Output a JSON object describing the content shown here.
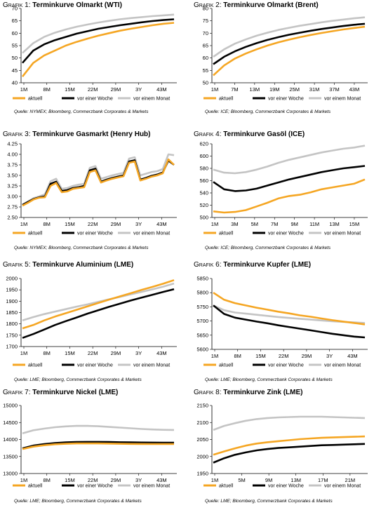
{
  "colors": {
    "aktuell": "#f5a623",
    "week": "#000000",
    "month": "#c4c4c4",
    "grid": "#dddddd"
  },
  "panels": [
    {
      "prefix": "Grafik 1:",
      "title": "Terminkurve Olmarkt (WTI)",
      "source": "Quelle: NYMEX; Bloomberg, Commerzbank Corporates & Markets",
      "chart_data": {
        "type": "line",
        "x_ticks": [
          "1M",
          "8M",
          "15M",
          "22M",
          "29M",
          "3Y",
          "43M"
        ],
        "ylim": [
          40,
          70
        ],
        "y_ticks": [
          40,
          45,
          50,
          55,
          60,
          65,
          70
        ],
        "legend": [
          "aktuell",
          "vor einer Woche",
          "vor einem Monat"
        ],
        "series": [
          {
            "name": "aktuell",
            "values": [
              42.5,
              48,
              51,
              53,
              55,
              56.5,
              57.8,
              59,
              60,
              61,
              61.8,
              62.5,
              63.2,
              63.8,
              64.2
            ]
          },
          {
            "name": "vor einer Woche",
            "values": [
              48,
              53,
              55.5,
              57.2,
              58.5,
              59.8,
              60.8,
              61.8,
              62.5,
              63.2,
              63.8,
              64.4,
              64.9,
              65.3,
              65.6
            ]
          },
          {
            "name": "vor einem Monat",
            "values": [
              52,
              56,
              58.5,
              60.2,
              61.5,
              62.6,
              63.5,
              64.3,
              65,
              65.6,
              66.1,
              66.5,
              66.9,
              67.2,
              67.5
            ]
          }
        ]
      }
    },
    {
      "prefix": "Grafik 2:",
      "title": "Terminkurve Olmarkt (Brent)",
      "source": "Quelle: ICE; Bloomberg, Commerzbank Corporates & Markets",
      "chart_data": {
        "type": "line",
        "x_ticks": [
          "1M",
          "7M",
          "13M",
          "19M",
          "25M",
          "31M",
          "37M",
          "43M"
        ],
        "ylim": [
          50,
          80
        ],
        "y_ticks": [
          50,
          55,
          60,
          65,
          70,
          75,
          80
        ],
        "legend": [
          "aktuell",
          "vor einer Woche",
          "vor einem Monat"
        ],
        "series": [
          {
            "name": "aktuell",
            "values": [
              53,
              57,
              59.8,
              61.8,
              63.5,
              65,
              66.3,
              67.4,
              68.4,
              69.3,
              70.1,
              70.8,
              71.5,
              72.1,
              72.6
            ]
          },
          {
            "name": "vor einer Woche",
            "values": [
              57.5,
              60.5,
              62.7,
              64.5,
              66,
              67.3,
              68.4,
              69.4,
              70.2,
              71,
              71.7,
              72.3,
              72.9,
              73.4,
              73.8
            ]
          },
          {
            "name": "vor einem Monat",
            "values": [
              60.5,
              63.5,
              65.8,
              67.5,
              69,
              70.2,
              71.3,
              72.2,
              73,
              73.7,
              74.4,
              75,
              75.5,
              76,
              76.4
            ]
          }
        ]
      }
    },
    {
      "prefix": "Grafik 3:",
      "title": "Terminkurve Gasmarkt (Henry Hub)",
      "source": "Quelle: NYMEX; Bloomberg, Commerzbank Corporates & Markets",
      "chart_data": {
        "type": "line",
        "x_ticks": [
          "1M",
          "8M",
          "15M",
          "22M",
          "29M",
          "3Y",
          "43M"
        ],
        "ylim": [
          2.5,
          4.25
        ],
        "y_ticks": [
          2.5,
          2.75,
          3.0,
          3.25,
          3.5,
          3.75,
          4.0,
          4.25
        ],
        "y_tick_labels": [
          "2.50",
          "2.75",
          "3.00",
          "3.25",
          "3.50",
          "3.75",
          "4.00",
          "4.25"
        ],
        "legend": [
          "aktuell",
          "vor einer Woche",
          "vor einem Monat"
        ],
        "series": [
          {
            "name": "aktuell",
            "values": [
              2.78,
              2.85,
              2.93,
              2.97,
              2.98,
              3.25,
              3.32,
              3.1,
              3.12,
              3.18,
              3.2,
              3.22,
              3.58,
              3.62,
              3.33,
              3.38,
              3.42,
              3.45,
              3.48,
              3.8,
              3.83,
              3.38,
              3.42,
              3.47,
              3.5,
              3.55,
              3.88,
              3.75
            ]
          },
          {
            "name": "vor einer Woche",
            "values": [
              2.8,
              2.87,
              2.94,
              2.98,
              3.0,
              3.3,
              3.35,
              3.13,
              3.15,
              3.2,
              3.22,
              3.25,
              3.62,
              3.66,
              3.35,
              3.4,
              3.44,
              3.47,
              3.5,
              3.83,
              3.86,
              3.4,
              3.44,
              3.49,
              3.52,
              3.57,
              3.85,
              3.75
            ]
          },
          {
            "name": "vor einem Monat",
            "values": [
              2.8,
              2.88,
              2.96,
              3.0,
              3.05,
              3.36,
              3.42,
              3.18,
              3.2,
              3.25,
              3.28,
              3.3,
              3.68,
              3.72,
              3.42,
              3.46,
              3.5,
              3.53,
              3.56,
              3.9,
              3.93,
              3.5,
              3.54,
              3.58,
              3.6,
              3.65,
              4.0,
              3.98
            ]
          }
        ]
      }
    },
    {
      "prefix": "Grafik 4:",
      "title": "Terminkurve Gasöl (ICE)",
      "source": "Quelle: ICE; Bloomberg, Commerzbank Corporates & Markets",
      "chart_data": {
        "type": "line",
        "x_ticks": [
          "1M",
          "3M",
          "5M",
          "7M",
          "9M",
          "11M",
          "13M",
          "15M"
        ],
        "ylim": [
          500,
          620
        ],
        "y_ticks": [
          500,
          520,
          540,
          560,
          580,
          600,
          620
        ],
        "legend": [
          "aktuell",
          "vor einer Woche",
          "vor einem Monat"
        ],
        "series": [
          {
            "name": "aktuell",
            "values": [
              510,
              508,
              509,
              512,
              518,
              524,
              531,
              535,
              537,
              541,
              546,
              549,
              552,
              555,
              562
            ]
          },
          {
            "name": "vor einer Woche",
            "values": [
              558,
              546,
              543,
              544,
              547,
              552,
              557,
              562,
              566,
              570,
              574,
              577,
              580,
              582,
              584
            ]
          },
          {
            "name": "vor einem Monat",
            "values": [
              578,
              573,
              572,
              574,
              578,
              583,
              589,
              594,
              598,
              602,
              606,
              609,
              612,
              614,
              617
            ]
          }
        ]
      }
    },
    {
      "prefix": "Grafik 5:",
      "title": "Terminkurve Aluminium (LME)",
      "source": "Quelle: LME; Bloomberg, Commerzbank Corporates & Markets",
      "chart_data": {
        "type": "line",
        "x_ticks": [
          "1M",
          "8M",
          "15M",
          "22M",
          "29M",
          "3Y",
          "43M"
        ],
        "ylim": [
          1700,
          2000
        ],
        "y_ticks": [
          1700,
          1750,
          1800,
          1850,
          1900,
          1950,
          2000
        ],
        "legend": [
          "aktuell",
          "vor einer Woche",
          "vor einem Monat"
        ],
        "series": [
          {
            "name": "aktuell",
            "values": [
              1780,
              1795,
              1815,
              1832,
              1847,
              1862,
              1877,
              1892,
              1907,
              1921,
              1935,
              1950,
              1963,
              1977,
              1993
            ]
          },
          {
            "name": "vor einer Woche",
            "values": [
              1738,
              1755,
              1775,
              1795,
              1812,
              1828,
              1845,
              1860,
              1875,
              1889,
              1903,
              1916,
              1928,
              1941,
              1953
            ]
          },
          {
            "name": "vor einem Monat",
            "values": [
              1815,
              1830,
              1843,
              1854,
              1865,
              1876,
              1886,
              1897,
              1908,
              1919,
              1930,
              1941,
              1952,
              1964,
              1978
            ]
          }
        ]
      }
    },
    {
      "prefix": "Grafik 6:",
      "title": "Terminkurve Kupfer (LME)",
      "source": "Quelle: LME; Bloomberg, Commerzbank Corporates & Markets",
      "chart_data": {
        "type": "line",
        "x_ticks": [
          "1M",
          "8M",
          "15M",
          "22M",
          "29M",
          "3Y",
          "43M"
        ],
        "ylim": [
          5600,
          5850
        ],
        "y_ticks": [
          5600,
          5650,
          5700,
          5750,
          5800,
          5850
        ],
        "legend": [
          "aktuell",
          "vor einer Woche",
          "vor einem Monat"
        ],
        "series": [
          {
            "name": "aktuell",
            "values": [
              5800,
              5775,
              5763,
              5755,
              5747,
              5740,
              5733,
              5727,
              5720,
              5715,
              5709,
              5703,
              5698,
              5693,
              5688
            ]
          },
          {
            "name": "vor einer Woche",
            "values": [
              5755,
              5725,
              5712,
              5705,
              5698,
              5692,
              5685,
              5679,
              5673,
              5667,
              5661,
              5655,
              5650,
              5645,
              5642
            ]
          },
          {
            "name": "vor einem Monat",
            "values": [
              5755,
              5738,
              5730,
              5726,
              5722,
              5718,
              5714,
              5711,
              5708,
              5705,
              5702,
              5699,
              5697,
              5695,
              5693
            ]
          }
        ]
      }
    },
    {
      "prefix": "Grafik 7:",
      "title": "Terminkurve Nickel (LME)",
      "source": "Quelle: LME; Bloomberg, Commerzbank Corporates & Markets",
      "chart_data": {
        "type": "line",
        "x_ticks": [
          "1M",
          "8M",
          "15M",
          "22M",
          "29M",
          "3Y",
          "43M"
        ],
        "ylim": [
          13000,
          15000
        ],
        "y_ticks": [
          13000,
          13500,
          14000,
          14500,
          15000
        ],
        "legend": [
          "aktuell",
          "vor einer Woche",
          "vor einem Monat"
        ],
        "series": [
          {
            "name": "aktuell",
            "values": [
              13720,
              13790,
              13830,
              13860,
              13875,
              13885,
              13885,
              13885,
              13880,
              13875,
              13870,
              13868,
              13866,
              13865,
              13865
            ]
          },
          {
            "name": "vor einer Woche",
            "values": [
              13740,
              13820,
              13865,
              13895,
              13915,
              13925,
              13930,
              13930,
              13925,
              13920,
              13915,
              13912,
              13910,
              13908,
              13908
            ]
          },
          {
            "name": "vor einem Monat",
            "values": [
              14180,
              14270,
              14320,
              14360,
              14385,
              14400,
              14400,
              14390,
              14370,
              14350,
              14330,
              14310,
              14295,
              14285,
              14280
            ]
          }
        ]
      }
    },
    {
      "prefix": "Grafik 8:",
      "title": "Terminkurve Zink (LME)",
      "source": "Quelle: LME; Bloomberg, Commerzbank Corporates & Markets",
      "chart_data": {
        "type": "line",
        "x_ticks": [
          "1M",
          "5M",
          "9M",
          "13M",
          "17M",
          "21M"
        ],
        "ylim": [
          1950,
          2150
        ],
        "y_ticks": [
          1950,
          2000,
          2050,
          2100,
          2150
        ],
        "legend": [
          "aktuell",
          "vor einer Woche",
          "vor einem Monat"
        ],
        "series": [
          {
            "name": "aktuell",
            "values": [
              2005,
              2015,
              2024,
              2032,
              2038,
              2042,
              2045,
              2048,
              2051,
              2053,
              2055,
              2056,
              2057,
              2058,
              2059
            ]
          },
          {
            "name": "vor einer Woche",
            "values": [
              1982,
              1995,
              2005,
              2012,
              2018,
              2022,
              2025,
              2027,
              2029,
              2031,
              2033,
              2034,
              2035,
              2036,
              2037
            ]
          },
          {
            "name": "vor einem Monat",
            "values": [
              2078,
              2090,
              2098,
              2105,
              2110,
              2113,
              2115,
              2116,
              2117,
              2117,
              2117,
              2116,
              2115,
              2114,
              2113
            ]
          }
        ]
      }
    }
  ]
}
